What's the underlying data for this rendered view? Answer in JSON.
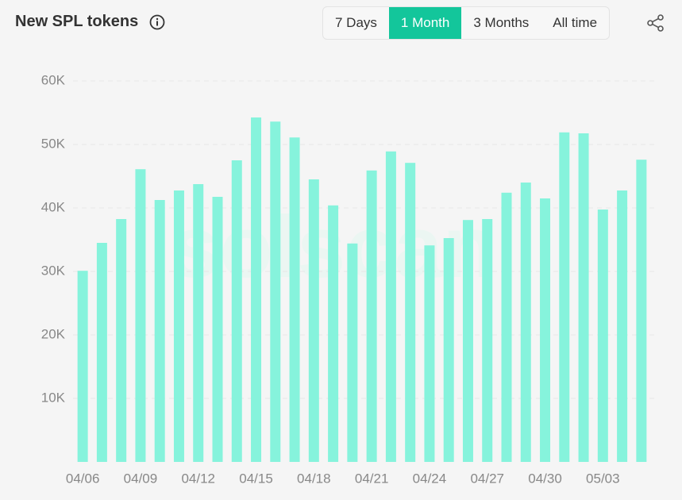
{
  "header": {
    "title": "New SPL tokens",
    "buttons": [
      "7 Days",
      "1 Month",
      "3 Months",
      "All time"
    ],
    "active_button": 1
  },
  "watermark": "solscan",
  "chart_data": {
    "type": "bar",
    "categories": [
      "04/06",
      null,
      null,
      "04/09",
      null,
      null,
      "04/12",
      null,
      null,
      "04/15",
      null,
      null,
      "04/18",
      null,
      null,
      "04/21",
      null,
      null,
      "04/24",
      null,
      null,
      "04/27",
      null,
      null,
      "04/30",
      null,
      null,
      "05/03",
      null,
      null
    ],
    "values": [
      30100,
      34500,
      38250,
      46100,
      41250,
      42750,
      43750,
      41750,
      47500,
      54250,
      53600,
      51100,
      44500,
      40400,
      34400,
      45900,
      48900,
      47100,
      34100,
      35250,
      38100,
      38250,
      42400,
      44000,
      41500,
      51900,
      51750,
      39750,
      42750,
      47600
    ],
    "color": "#86f3dc",
    "ylim": [
      0,
      60000
    ],
    "yticks": [
      {
        "value": 10000,
        "label": "10K"
      },
      {
        "value": 20000,
        "label": "20K"
      },
      {
        "value": 30000,
        "label": "30K"
      },
      {
        "value": 40000,
        "label": "40K"
      },
      {
        "value": 50000,
        "label": "50K"
      },
      {
        "value": 60000,
        "label": "60K"
      }
    ],
    "grid": true
  }
}
